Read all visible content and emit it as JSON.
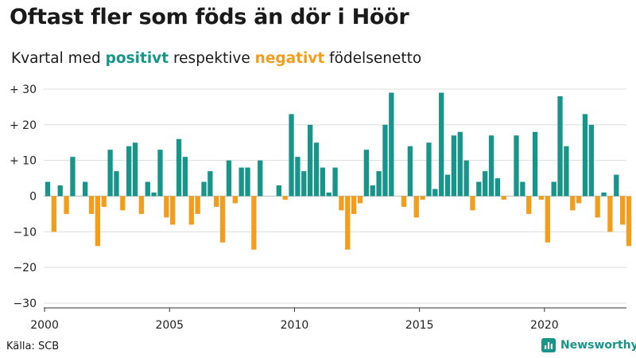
{
  "title": "Oftast fler som föds än dör i Höör",
  "subtitle": {
    "prefix": "Kvartal med",
    "positive_word": "positivt",
    "middle": "respektive",
    "negative_word": "negativt",
    "suffix": "födelsenetto"
  },
  "source": "Källa: SCB",
  "brand": {
    "name": "Newsworthy",
    "logo_icon": "bar-chart-logo-icon"
  },
  "colors": {
    "positive": "#17958a",
    "negative": "#f29e1c",
    "grid": "#dddddd",
    "axis": "#333333"
  },
  "chart_data": {
    "type": "bar",
    "title": "Oftast fler som föds än dör i Höör",
    "xlabel": "",
    "ylabel": "",
    "x_start_year": 2000,
    "periods_per_year": 4,
    "ylim": [
      -30,
      30
    ],
    "yticks": [
      30,
      20,
      10,
      0,
      -10,
      -20,
      -30
    ],
    "ytick_labels": [
      "+ 30",
      "+ 20",
      "+ 10",
      "0",
      "−10",
      "−20",
      "−30"
    ],
    "xticks": [
      2000,
      2005,
      2010,
      2015,
      2020
    ],
    "xtick_labels": [
      "2000",
      "2005",
      "2010",
      "2015",
      "2020"
    ],
    "grid": true,
    "values": [
      4,
      -10,
      3,
      -5,
      11,
      0,
      4,
      -5,
      -14,
      -3,
      13,
      7,
      -4,
      14,
      15,
      -5,
      4,
      1,
      13,
      -6,
      -8,
      16,
      11,
      -8,
      -5,
      4,
      7,
      -3,
      -13,
      10,
      -2,
      8,
      8,
      -15,
      10,
      0,
      0,
      3,
      -1,
      23,
      11,
      7,
      20,
      15,
      8,
      1,
      8,
      -4,
      -15,
      -5,
      -2,
      13,
      3,
      7,
      20,
      29,
      0,
      -3,
      14,
      -6,
      -1,
      15,
      2,
      29,
      6,
      17,
      18,
      10,
      -4,
      4,
      7,
      17,
      5,
      -1,
      0,
      17,
      4,
      -5,
      18,
      -1,
      -13,
      4,
      28,
      14,
      -4,
      -2,
      23,
      20,
      -6,
      1,
      -10,
      6,
      -8,
      -14
    ]
  }
}
